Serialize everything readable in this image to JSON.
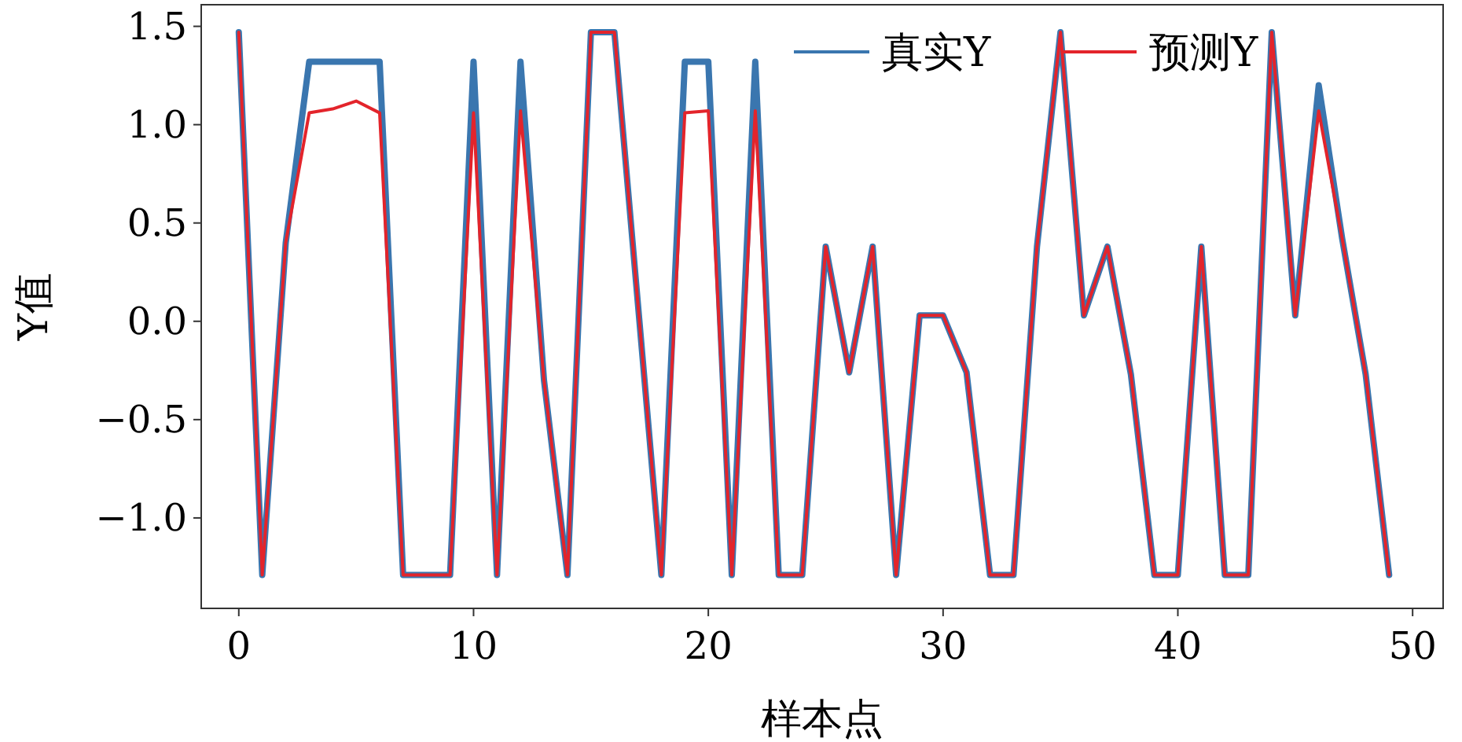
{
  "chart_data": {
    "type": "line",
    "xlabel": "样本点",
    "ylabel": "Y值",
    "x": [
      0,
      1,
      2,
      3,
      4,
      5,
      6,
      7,
      8,
      9,
      10,
      11,
      12,
      13,
      14,
      15,
      16,
      17,
      18,
      19,
      20,
      21,
      22,
      23,
      24,
      25,
      26,
      27,
      28,
      29,
      30,
      31,
      32,
      33,
      34,
      35,
      36,
      37,
      38,
      39,
      40,
      41,
      42,
      43,
      44,
      45,
      46,
      47,
      48,
      49
    ],
    "series": [
      {
        "name": "真实Y",
        "color": "#3a76af",
        "values": [
          1.47,
          -1.29,
          0.4,
          1.32,
          1.32,
          1.32,
          1.32,
          -1.29,
          -1.29,
          -1.29,
          1.32,
          -1.29,
          1.32,
          -0.3,
          -1.29,
          1.47,
          1.47,
          0.09,
          -1.29,
          1.32,
          1.32,
          -1.29,
          1.32,
          -1.29,
          -1.29,
          0.38,
          -0.26,
          0.38,
          -1.29,
          0.03,
          0.03,
          -0.26,
          -1.29,
          -1.29,
          0.38,
          1.47,
          0.03,
          0.38,
          -0.27,
          -1.29,
          -1.29,
          0.38,
          -1.29,
          -1.29,
          1.47,
          0.03,
          1.2,
          0.42,
          -0.27,
          -1.29
        ]
      },
      {
        "name": "预测Y",
        "color": "#e3242b",
        "values": [
          1.47,
          -1.29,
          0.4,
          1.06,
          1.08,
          1.12,
          1.06,
          -1.29,
          -1.29,
          -1.29,
          1.06,
          -1.29,
          1.07,
          -0.3,
          -1.29,
          1.47,
          1.47,
          0.09,
          -1.29,
          1.06,
          1.07,
          -1.29,
          1.07,
          -1.29,
          -1.29,
          0.38,
          -0.26,
          0.38,
          -1.29,
          0.03,
          0.03,
          -0.26,
          -1.29,
          -1.29,
          0.38,
          1.47,
          0.03,
          0.38,
          -0.27,
          -1.29,
          -1.29,
          0.38,
          -1.29,
          -1.29,
          1.47,
          0.03,
          1.07,
          0.42,
          -0.27,
          -1.29
        ]
      }
    ],
    "xlim": [
      -1.6,
      51.3
    ],
    "ylim": [
      -1.46,
      1.61
    ],
    "xticks": [
      0,
      10,
      20,
      30,
      40,
      50
    ],
    "yticks": [
      {
        "value": -1.0,
        "label": "−1.0"
      },
      {
        "value": -0.5,
        "label": "−0.5"
      },
      {
        "value": 0,
        "label": "0.0"
      },
      {
        "value": 0.5,
        "label": "0.5"
      },
      {
        "value": 1.0,
        "label": "1.0"
      },
      {
        "value": 1.5,
        "label": "1.5"
      }
    ],
    "legend": "top right"
  }
}
